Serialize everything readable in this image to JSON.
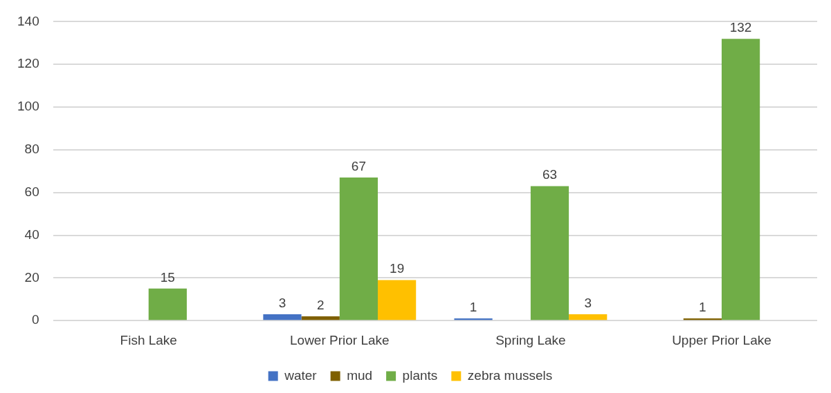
{
  "chart_data": {
    "type": "bar",
    "categories": [
      "Fish Lake",
      "Lower Prior Lake",
      "Spring Lake",
      "Upper Prior Lake"
    ],
    "series": [
      {
        "name": "water",
        "color": "#4472c4",
        "values": [
          null,
          3,
          1,
          null
        ]
      },
      {
        "name": "mud",
        "color": "#7f6000",
        "values": [
          null,
          2,
          null,
          1
        ]
      },
      {
        "name": "plants",
        "color": "#70ad47",
        "values": [
          15,
          67,
          63,
          132
        ]
      },
      {
        "name": "zebra mussels",
        "color": "#ffc000",
        "values": [
          null,
          19,
          3,
          null
        ]
      }
    ],
    "ylim": [
      0,
      140
    ],
    "yticks": [
      0,
      20,
      40,
      60,
      80,
      100,
      120,
      140
    ],
    "grid": "y",
    "legend": "bottom",
    "data_labels": true
  }
}
